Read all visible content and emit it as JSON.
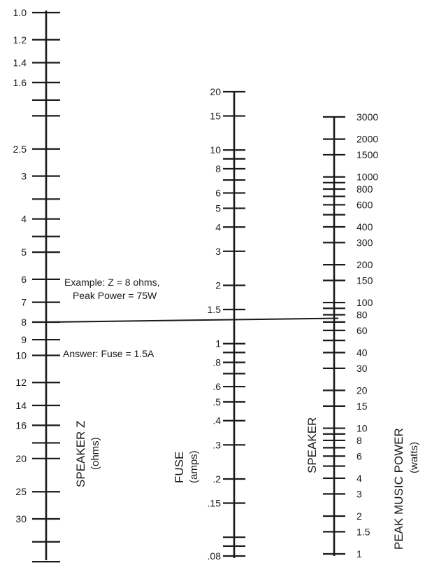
{
  "axes": {
    "speaker_z": {
      "title": "SPEAKER Z",
      "unit": "(ohms)",
      "labels": [
        {
          "text": "1.0",
          "value": 1.0
        },
        {
          "text": "1.2",
          "value": 1.2
        },
        {
          "text": "1.4",
          "value": 1.4
        },
        {
          "text": "1.6",
          "value": 1.6
        },
        {
          "text": "2.5",
          "value": 2.5
        },
        {
          "text": "3",
          "value": 3
        },
        {
          "text": "4",
          "value": 4
        },
        {
          "text": "5",
          "value": 5
        },
        {
          "text": "6",
          "value": 6
        },
        {
          "text": "7",
          "value": 7
        },
        {
          "text": "8",
          "value": 8
        },
        {
          "text": "9",
          "value": 9
        },
        {
          "text": "10",
          "value": 10
        },
        {
          "text": "12",
          "value": 12
        },
        {
          "text": "14",
          "value": 14
        },
        {
          "text": "16",
          "value": 16
        },
        {
          "text": "20",
          "value": 20
        },
        {
          "text": "25",
          "value": 25
        },
        {
          "text": "30",
          "value": 30
        }
      ],
      "ticks": [
        1.0,
        1.2,
        1.4,
        1.6,
        1.8,
        2.0,
        2.5,
        3,
        3.5,
        4,
        4.5,
        5,
        6,
        7,
        8,
        9,
        10,
        12,
        14,
        16,
        18,
        20,
        25,
        30,
        35,
        40,
        45
      ]
    },
    "fuse": {
      "title": "FUSE",
      "unit": "(amps)",
      "labels": [
        {
          "text": "20",
          "value": 20
        },
        {
          "text": "15",
          "value": 15
        },
        {
          "text": "10",
          "value": 10
        },
        {
          "text": "8",
          "value": 8
        },
        {
          "text": "6",
          "value": 6
        },
        {
          "text": "5",
          "value": 5
        },
        {
          "text": "4",
          "value": 4
        },
        {
          "text": "3",
          "value": 3
        },
        {
          "text": "2",
          "value": 2
        },
        {
          "text": "1.5",
          "value": 1.5
        },
        {
          "text": "1",
          "value": 1
        },
        {
          "text": ".8",
          "value": 0.8
        },
        {
          "text": ".6",
          "value": 0.6
        },
        {
          "text": ".5",
          "value": 0.5
        },
        {
          "text": ".4",
          "value": 0.4
        },
        {
          "text": ".3",
          "value": 0.3
        },
        {
          "text": ".2",
          "value": 0.2
        },
        {
          "text": ".15",
          "value": 0.15
        },
        {
          "text": ".08",
          "value": 0.08
        }
      ],
      "ticks": [
        20,
        15,
        10,
        9,
        8,
        7,
        6,
        5,
        4,
        3,
        2,
        1.5,
        1,
        0.9,
        0.8,
        0.7,
        0.6,
        0.5,
        0.4,
        0.3,
        0.2,
        0.15,
        0.1,
        0.09,
        0.08
      ]
    },
    "power": {
      "title": "SPEAKER",
      "title2": "PEAK MUSIC POWER",
      "unit": "(watts)",
      "labels": [
        {
          "text": "3000",
          "value": 3000
        },
        {
          "text": "2000",
          "value": 2000
        },
        {
          "text": "1500",
          "value": 1500
        },
        {
          "text": "1000",
          "value": 1000
        },
        {
          "text": "800",
          "value": 800
        },
        {
          "text": "600",
          "value": 600
        },
        {
          "text": "400",
          "value": 400
        },
        {
          "text": "300",
          "value": 300
        },
        {
          "text": "200",
          "value": 200
        },
        {
          "text": "150",
          "value": 150
        },
        {
          "text": "100",
          "value": 100
        },
        {
          "text": "80",
          "value": 80
        },
        {
          "text": "60",
          "value": 60
        },
        {
          "text": "40",
          "value": 40
        },
        {
          "text": "30",
          "value": 30
        },
        {
          "text": "20",
          "value": 20
        },
        {
          "text": "15",
          "value": 15
        },
        {
          "text": "10",
          "value": 10
        },
        {
          "text": "8",
          "value": 8
        },
        {
          "text": "6",
          "value": 6
        },
        {
          "text": "4",
          "value": 4
        },
        {
          "text": "3",
          "value": 3
        },
        {
          "text": "2",
          "value": 2
        },
        {
          "text": "1.5",
          "value": 1.5
        },
        {
          "text": "1",
          "value": 1
        }
      ],
      "ticks": [
        3000,
        2000,
        1500,
        1000,
        900,
        800,
        700,
        600,
        500,
        400,
        300,
        200,
        150,
        100,
        90,
        80,
        70,
        60,
        50,
        40,
        30,
        20,
        15,
        10,
        9,
        8,
        7,
        6,
        5,
        4,
        3,
        2,
        1.5,
        1
      ]
    }
  },
  "example": {
    "line1": "Example: Z = 8 ohms,",
    "line2": "Peak Power = 75W",
    "answer": "Answer:  Fuse = 1.5A",
    "z": 8,
    "power": 75,
    "fuse": 1.5
  }
}
